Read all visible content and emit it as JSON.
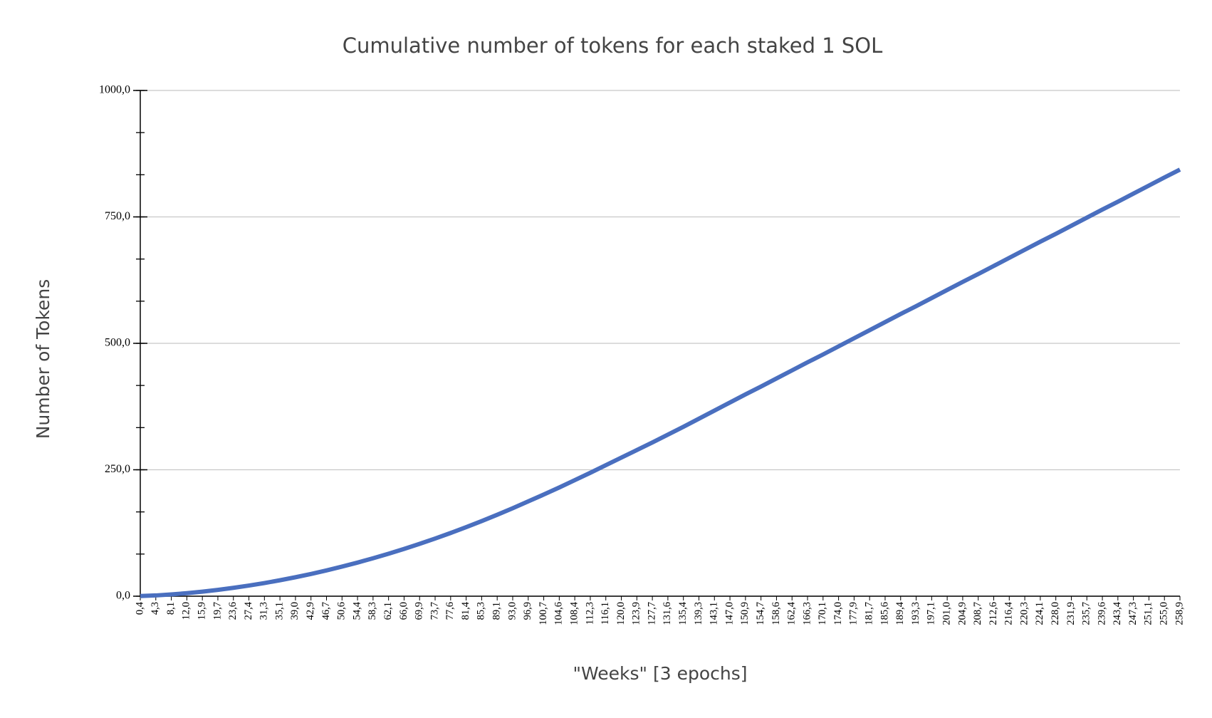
{
  "chart_data": {
    "type": "line",
    "title": "Cumulative number of tokens for each staked 1 SOL",
    "x_label": "\"Weeks\" [3 epochs]",
    "y_label": "Number of Tokens",
    "categories": [
      "0,4",
      "4,3",
      "8,1",
      "12,0",
      "15,9",
      "19,7",
      "23,6",
      "27,4",
      "31,3",
      "35,1",
      "39,0",
      "42,9",
      "46,7",
      "50,6",
      "54,4",
      "58,3",
      "62,1",
      "66,0",
      "69,9",
      "73,7",
      "77,6",
      "81,4",
      "85,3",
      "89,1",
      "93,0",
      "96,9",
      "100,7",
      "104,6",
      "108,4",
      "112,3",
      "116,1",
      "120,0",
      "123,9",
      "127,7",
      "131,6",
      "135,4",
      "139,3",
      "143,1",
      "147,0",
      "150,9",
      "154,7",
      "158,6",
      "162,4",
      "166,3",
      "170,1",
      "174,0",
      "177,9",
      "181,7",
      "185,6",
      "189,4",
      "193,3",
      "197,1",
      "201,0",
      "204,9",
      "208,7",
      "212,6",
      "216,4",
      "220,3",
      "224,1",
      "228,0",
      "231,9",
      "235,7",
      "239,6",
      "243,4",
      "247,3",
      "251,1",
      "255,0",
      "258,9"
    ],
    "series": [
      {
        "color": "#4a6fbf",
        "values": [
          0.4,
          1.5,
          3.5,
          6,
          9,
          12.5,
          16.5,
          21,
          26,
          31.5,
          37.5,
          44,
          51,
          58.5,
          66.5,
          75,
          84,
          93.5,
          103.5,
          114,
          125,
          136.5,
          148.5,
          161,
          174,
          187.5,
          201,
          215,
          229.5,
          244,
          259,
          274,
          289,
          304,
          319.5,
          335,
          351,
          367,
          383,
          399,
          414.5,
          430.5,
          446.5,
          462.5,
          478,
          494,
          510,
          526,
          542,
          558,
          573.5,
          589.5,
          605.5,
          621.5,
          637,
          653,
          669,
          685,
          701,
          716.5,
          732.5,
          748.5,
          764.5,
          780,
          796,
          812,
          828,
          843.5
        ]
      }
    ],
    "ylim": [
      0,
      1000
    ],
    "yticks": [
      {
        "value": 0,
        "label": "0,0"
      },
      {
        "value": 250,
        "label": "250,0"
      },
      {
        "value": 500,
        "label": "500,0"
      },
      {
        "value": 750,
        "label": "750,0"
      },
      {
        "value": 1000,
        "label": "1000,0"
      }
    ],
    "grid": true
  }
}
